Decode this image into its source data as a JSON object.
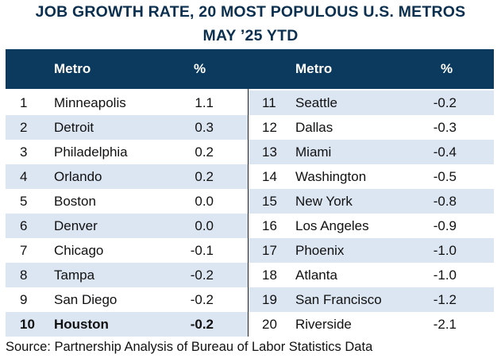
{
  "title_line1": "JOB GROWTH RATE, 20 MOST POPULOUS U.S. METROS",
  "title_line2": "MAY ’25 YTD",
  "colors": {
    "header": "#0b3a5e",
    "stripe": "#dce6f2"
  },
  "chart_data": {
    "type": "table",
    "columns": [
      "",
      "Metro",
      "%",
      "",
      "Metro",
      "%"
    ],
    "left": [
      {
        "rank": "1",
        "metro": "Minneapolis",
        "pct": "1.1"
      },
      {
        "rank": "2",
        "metro": "Detroit",
        "pct": "0.3"
      },
      {
        "rank": "3",
        "metro": "Philadelphia",
        "pct": "0.2"
      },
      {
        "rank": "4",
        "metro": "Orlando",
        "pct": "0.2"
      },
      {
        "rank": "5",
        "metro": "Boston",
        "pct": "0.0"
      },
      {
        "rank": "6",
        "metro": "Denver",
        "pct": "0.0"
      },
      {
        "rank": "7",
        "metro": "Chicago",
        "pct": "-0.1"
      },
      {
        "rank": "8",
        "metro": "Tampa",
        "pct": "-0.2"
      },
      {
        "rank": "9",
        "metro": "San Diego",
        "pct": "-0.2"
      },
      {
        "rank": "10",
        "metro": "Houston",
        "pct": "-0.2",
        "bold": true
      }
    ],
    "right": [
      {
        "rank": "11",
        "metro": "Seattle",
        "pct": "-0.2"
      },
      {
        "rank": "12",
        "metro": "Dallas",
        "pct": "-0.3"
      },
      {
        "rank": "13",
        "metro": "Miami",
        "pct": "-0.4"
      },
      {
        "rank": "14",
        "metro": "Washington",
        "pct": "-0.5"
      },
      {
        "rank": "15",
        "metro": "New York",
        "pct": "-0.8"
      },
      {
        "rank": "16",
        "metro": "Los Angeles",
        "pct": "-0.9"
      },
      {
        "rank": "17",
        "metro": "Phoenix",
        "pct": "-1.0"
      },
      {
        "rank": "18",
        "metro": "Atlanta",
        "pct": "-1.0"
      },
      {
        "rank": "19",
        "metro": "San Francisco",
        "pct": "-1.2"
      },
      {
        "rank": "20",
        "metro": "Riverside",
        "pct": "-2.1"
      }
    ]
  },
  "source": "Source: Partnership Analysis of Bureau of Labor Statistics Data"
}
